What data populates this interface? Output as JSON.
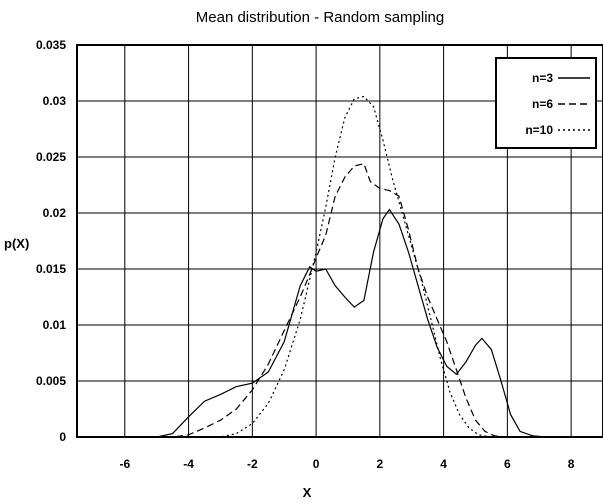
{
  "chart_data": {
    "type": "line",
    "title": "Mean distribution - Random sampling",
    "xlabel": "X",
    "ylabel": "p(X)",
    "xlim": [
      -7.5,
      9
    ],
    "ylim": [
      0,
      0.035
    ],
    "x_ticks": [
      -6,
      -4,
      -2,
      0,
      2,
      4,
      6,
      8
    ],
    "y_ticks": [
      0,
      0.005,
      0.01,
      0.015,
      0.02,
      0.025,
      0.03,
      0.035
    ],
    "x_tick_labels": [
      "-6",
      "-4",
      "-2",
      "0",
      "2",
      "4",
      "6",
      "8"
    ],
    "y_tick_labels": [
      "0",
      "0.005",
      "0.01",
      "0.015",
      "0.02",
      "0.025",
      "0.03",
      "0.035"
    ],
    "grid": true,
    "legend_position": "top-right",
    "series": [
      {
        "name": "n=3",
        "style": "solid",
        "x": [
          -7.5,
          -5.0,
          -4.5,
          -4.0,
          -3.5,
          -3.0,
          -2.5,
          -2.0,
          -1.5,
          -1.0,
          -0.5,
          -0.2,
          0.0,
          0.3,
          0.6,
          0.9,
          1.2,
          1.5,
          1.8,
          2.1,
          2.3,
          2.6,
          2.9,
          3.2,
          3.5,
          3.8,
          4.1,
          4.4,
          4.7,
          5.0,
          5.2,
          5.5,
          5.8,
          6.1,
          6.4,
          6.8,
          7.2,
          9.0
        ],
        "values": [
          0,
          0,
          0.0003,
          0.0018,
          0.0032,
          0.0038,
          0.0045,
          0.0048,
          0.0058,
          0.0085,
          0.0135,
          0.0152,
          0.0148,
          0.015,
          0.0135,
          0.0125,
          0.0116,
          0.0122,
          0.0165,
          0.0195,
          0.0203,
          0.019,
          0.0165,
          0.0135,
          0.0105,
          0.008,
          0.0063,
          0.0056,
          0.0067,
          0.0082,
          0.0088,
          0.0078,
          0.005,
          0.002,
          0.0005,
          0.0001,
          0,
          0
        ]
      },
      {
        "name": "n=6",
        "style": "dashed",
        "x": [
          -7.5,
          -4.5,
          -4.0,
          -3.5,
          -3.0,
          -2.5,
          -2.0,
          -1.5,
          -1.0,
          -0.5,
          -0.2,
          0.0,
          0.3,
          0.6,
          0.9,
          1.2,
          1.5,
          1.7,
          2.0,
          2.3,
          2.6,
          2.9,
          3.2,
          3.5,
          3.8,
          4.1,
          4.4,
          4.7,
          5.0,
          5.3,
          5.6,
          6.0,
          9.0
        ],
        "values": [
          0,
          0,
          0.0002,
          0.0008,
          0.0015,
          0.0025,
          0.0042,
          0.0065,
          0.0095,
          0.0125,
          0.0145,
          0.016,
          0.018,
          0.0215,
          0.0232,
          0.0242,
          0.0244,
          0.0228,
          0.0222,
          0.022,
          0.0215,
          0.0185,
          0.015,
          0.0125,
          0.0105,
          0.0085,
          0.006,
          0.0035,
          0.0015,
          0.0005,
          0.0001,
          0,
          0
        ]
      },
      {
        "name": "n=10",
        "style": "dotted",
        "x": [
          -7.5,
          -3.0,
          -2.5,
          -2.0,
          -1.5,
          -1.0,
          -0.5,
          0.0,
          0.3,
          0.6,
          0.9,
          1.2,
          1.5,
          1.8,
          2.1,
          2.4,
          2.7,
          3.0,
          3.3,
          3.6,
          3.9,
          4.2,
          4.5,
          4.8,
          5.1,
          5.5,
          9.0
        ],
        "values": [
          0,
          0,
          0.0003,
          0.0012,
          0.003,
          0.006,
          0.0105,
          0.0165,
          0.0205,
          0.025,
          0.0285,
          0.0302,
          0.0304,
          0.0295,
          0.0265,
          0.023,
          0.02,
          0.017,
          0.014,
          0.0105,
          0.007,
          0.004,
          0.002,
          0.0008,
          0.0002,
          0,
          0
        ]
      }
    ]
  }
}
